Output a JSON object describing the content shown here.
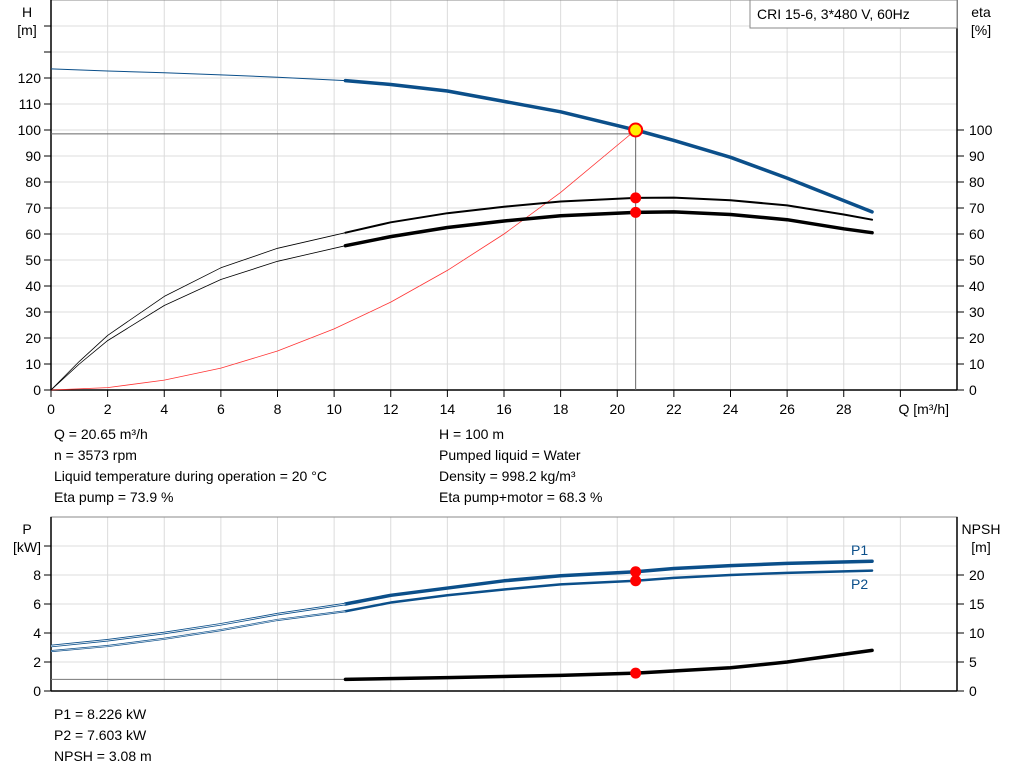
{
  "chart_data": [
    {
      "type": "line",
      "title_box": "CRI 15-6, 3*480 V, 60Hz",
      "xlabel": "Q [m³/h]",
      "ylabel_left": [
        "H",
        "[m]"
      ],
      "ylabel_right": [
        "eta",
        "[%]"
      ],
      "xlim": [
        0,
        32
      ],
      "ylim_left": [
        0,
        150
      ],
      "ylim_right": [
        0,
        150
      ],
      "x_ticks": [
        0,
        2,
        4,
        6,
        8,
        10,
        12,
        14,
        16,
        18,
        20,
        22,
        24,
        26,
        28
      ],
      "y_ticks_left": [
        0,
        10,
        20,
        30,
        40,
        50,
        60,
        70,
        80,
        90,
        100,
        110,
        120
      ],
      "y_ticks_right": [
        0,
        10,
        20,
        30,
        40,
        50,
        60,
        70,
        80,
        90,
        100
      ],
      "grid": true,
      "series": [
        {
          "key": "H",
          "color": "#0b4f8a",
          "x": [
            0,
            2,
            4,
            6,
            8,
            10.4,
            12,
            14,
            16,
            18,
            20.65,
            22,
            24,
            26,
            29
          ],
          "y": [
            123.5,
            122.7,
            122,
            121.2,
            120.3,
            119,
            117.5,
            115,
            111,
            107,
            100,
            96,
            89.5,
            81.5,
            68.5
          ]
        },
        {
          "key": "eta_pump",
          "color": "#000000",
          "x": [
            0,
            1,
            2,
            4,
            6,
            8,
            10.4,
            12,
            14,
            16,
            18,
            20.65,
            22,
            24,
            26,
            28,
            29
          ],
          "y": [
            0,
            11,
            21,
            36,
            47,
            54.5,
            60.5,
            64.5,
            68,
            70.5,
            72.5,
            73.9,
            74,
            73,
            71,
            67.5,
            65.5
          ]
        },
        {
          "key": "eta_total",
          "color": "#000000",
          "x": [
            0,
            1,
            2,
            4,
            6,
            8,
            10.4,
            12,
            14,
            16,
            18,
            20.65,
            22,
            24,
            26,
            28,
            29
          ],
          "y": [
            0,
            10,
            19,
            32.5,
            42.5,
            49.5,
            55.5,
            59,
            62.5,
            65,
            67,
            68.3,
            68.5,
            67.5,
            65.5,
            62,
            60.5
          ]
        },
        {
          "key": "system",
          "color": "#ff3333",
          "x": [
            0,
            2,
            4,
            6,
            8,
            10,
            12,
            14,
            16,
            18,
            20.65
          ],
          "y": [
            0,
            0.9,
            3.8,
            8.4,
            15,
            23.5,
            33.8,
            46,
            60,
            76,
            100
          ]
        }
      ],
      "duty_point": {
        "q": 20.65,
        "h": 100,
        "eta_pump": 73.9,
        "eta_total": 68.3
      }
    },
    {
      "type": "line",
      "ylabel_left": [
        "P",
        "[kW]"
      ],
      "ylabel_right": [
        "NPSH",
        "[m]"
      ],
      "xlim": [
        0,
        32
      ],
      "ylim_left": [
        0,
        12
      ],
      "ylim_right": [
        0,
        30
      ],
      "y_ticks_left": [
        0,
        2,
        4,
        6,
        8
      ],
      "y_ticks_right": [
        0,
        5,
        10,
        15,
        20
      ],
      "grid": true,
      "series": [
        {
          "name": "P1",
          "color": "#0b4f8a",
          "x": [
            0,
            2,
            4,
            6,
            8,
            10.4,
            12,
            14,
            16,
            18,
            20.65,
            22,
            24,
            26,
            29
          ],
          "y": [
            3.1,
            3.5,
            4.0,
            4.6,
            5.3,
            6.0,
            6.6,
            7.1,
            7.6,
            7.95,
            8.226,
            8.45,
            8.65,
            8.8,
            8.95
          ]
        },
        {
          "name": "P2",
          "color": "#0b4f8a",
          "x": [
            0,
            2,
            4,
            6,
            8,
            10.4,
            12,
            14,
            16,
            18,
            20.65,
            22,
            24,
            26,
            29
          ],
          "y": [
            2.75,
            3.1,
            3.6,
            4.2,
            4.9,
            5.5,
            6.1,
            6.6,
            7.0,
            7.35,
            7.603,
            7.8,
            8.0,
            8.15,
            8.3
          ]
        },
        {
          "key": "NPSH",
          "color": "#000000",
          "axis": "right",
          "x": [
            0,
            10.4,
            14,
            18,
            20.65,
            24,
            26,
            29
          ],
          "y": [
            2,
            2,
            2.3,
            2.7,
            3.08,
            4.0,
            5.0,
            7.0
          ]
        }
      ],
      "duty_point": {
        "q": 20.65,
        "p1": 8.226,
        "p2": 7.603,
        "npsh": 3.08
      }
    }
  ],
  "info_top_left": [
    "Q = 20.65 m³/h",
    "n = 3573 rpm",
    "Liquid temperature during operation = 20 °C",
    "Eta pump = 73.9 %"
  ],
  "info_top_right": [
    "H = 100 m",
    "Pumped liquid = Water",
    "Density = 998.2 kg/m³",
    "Eta pump+motor = 68.3 %"
  ],
  "info_bottom": [
    "P1 = 8.226 kW",
    "P2 = 7.603 kW",
    "NPSH = 3.08 m"
  ]
}
